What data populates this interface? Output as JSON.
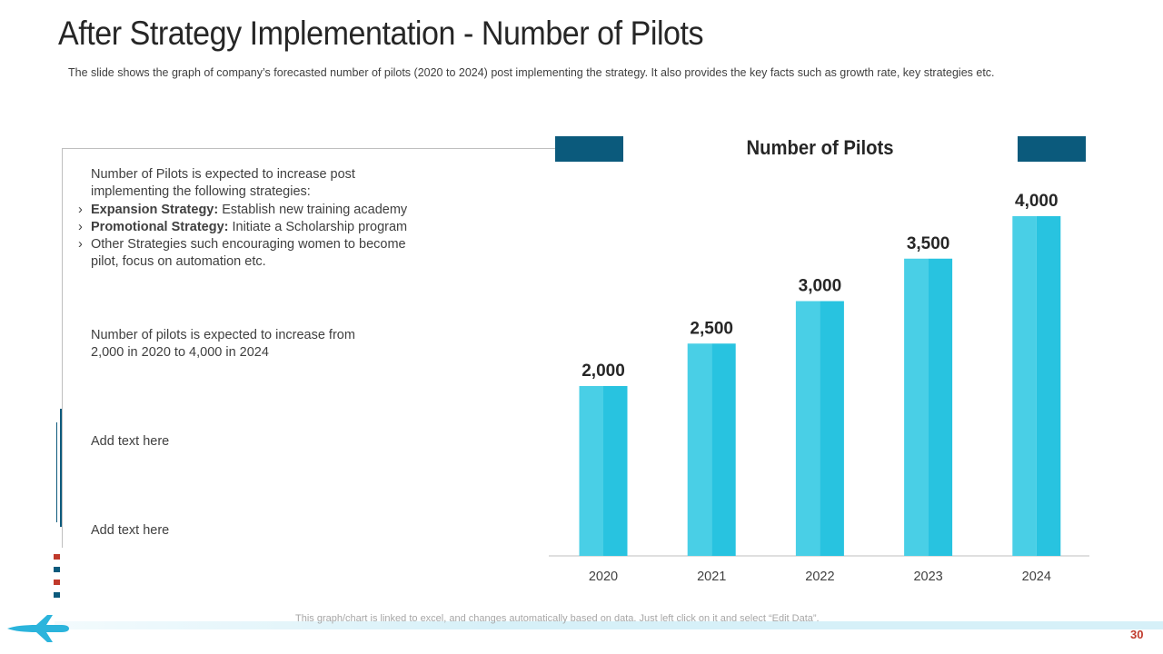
{
  "slide": {
    "title": "After Strategy Implementation - Number of Pilots",
    "subtitle": "The slide shows the graph of company’s forecasted  number of pilots (2020 to 2024) post implementing the strategy. It also provides  the key facts such as growth  rate, key strategies etc.",
    "page_number": "30",
    "footer_note": "This graph/chart is linked to excel,  and changes automatically based on data. Just left click on it and select “Edit Data”."
  },
  "left_panel": {
    "block1_intro": "Number of Pilots is expected to increase post implementing the following strategies:",
    "bullet_glyph": "›",
    "bullets": [
      {
        "bold": "Expansion Strategy:",
        "text": " Establish  new training academy"
      },
      {
        "bold": "Promotional Strategy:",
        "text": " Initiate  a Scholarship program"
      },
      {
        "bold": "",
        "text": "Other Strategies such encouraging women to become pilot, focus on automation etc."
      }
    ],
    "block2": "Number of pilots is expected to increase from 2,000 in 2020 to 4,000 in 2024",
    "block3": "Add text here",
    "block4": "Add text here"
  },
  "colors": {
    "bar_light": "#49cfe6",
    "bar_dark": "#28c3e0",
    "deco": "#0b5a7c",
    "marker_red": "#c0392b",
    "marker_blue": "#0b5a7c"
  },
  "chart_data": {
    "type": "bar",
    "title": "Number of Pilots",
    "categories": [
      "2020",
      "2021",
      "2022",
      "2023",
      "2024"
    ],
    "values": [
      2000,
      2500,
      3000,
      3500,
      4000
    ],
    "value_labels": [
      "2,000",
      "2,500",
      "3,000",
      "3,500",
      "4,000"
    ],
    "xlabel": "",
    "ylabel": "",
    "ylim": [
      0,
      4000
    ],
    "grid": false,
    "legend": "none"
  }
}
